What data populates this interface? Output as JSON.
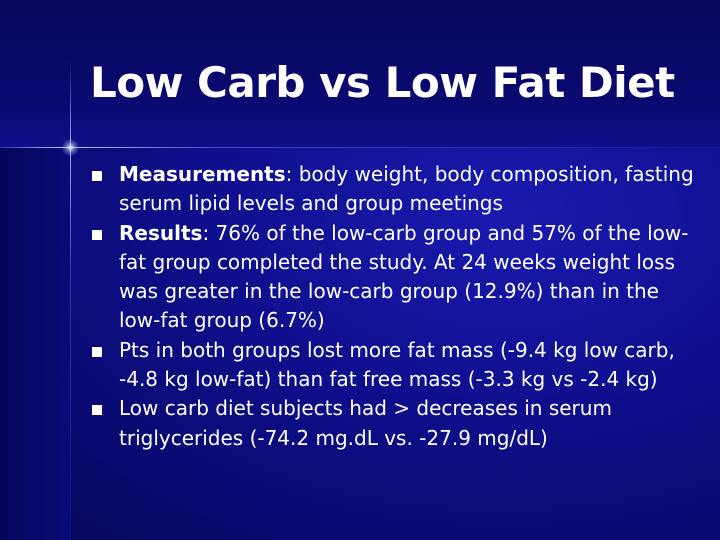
{
  "slide": {
    "title": "Low Carb vs Low Fat Diet",
    "bullets": [
      {
        "label": "Measurements",
        "text": ": body weight, body composition, fasting serum lipid levels and group meetings"
      },
      {
        "label": "Results",
        "text": ": 76% of the low-carb group and 57% of the low-fat group completed the study.  At 24 weeks weight loss was  greater in the low-carb group (12.9%)  than in the low-fat group (6.7%)"
      },
      {
        "label": "",
        "text": "Pts in both groups lost more fat mass (-9.4 kg low carb, -4.8 kg low-fat) than fat free mass (-3.3 kg vs -2.4 kg)"
      },
      {
        "label": "",
        "text": "Low carb diet subjects  had > decreases in serum triglycerides (-74.2 mg.dL vs. -27.9 mg/dL)"
      }
    ]
  },
  "colors": {
    "background": "#0e0e8a",
    "text": "#ffffff",
    "accent_line": "#b4c3ff"
  }
}
